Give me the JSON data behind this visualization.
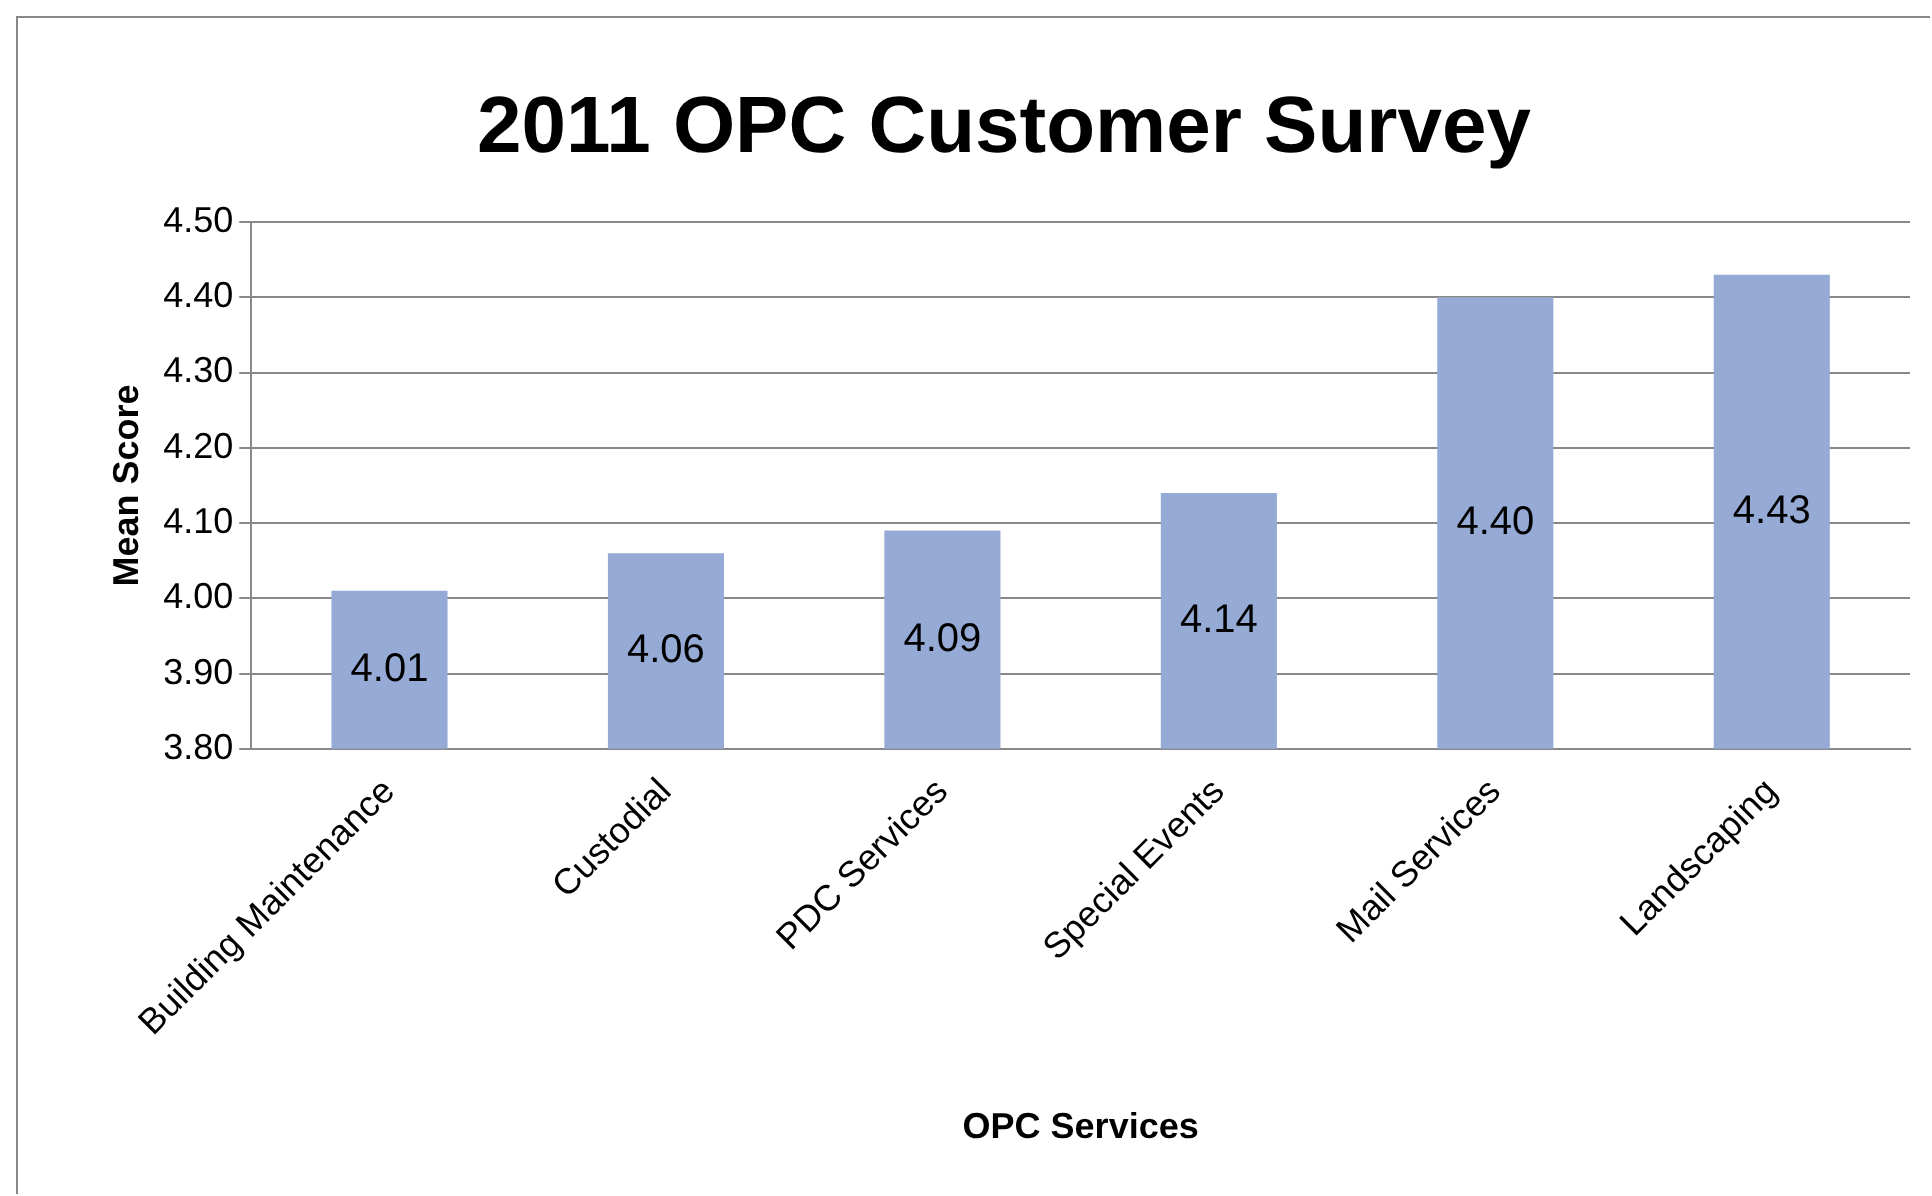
{
  "chart_data": {
    "type": "bar",
    "title": "2011 OPC Customer Survey",
    "xlabel": "OPC Services",
    "ylabel": "Mean Score",
    "categories": [
      "Building Maintenance",
      "Custodial",
      "PDC Services",
      "Special Events",
      "Mail Services",
      "Landscaping"
    ],
    "values": [
      4.01,
      4.06,
      4.09,
      4.14,
      4.4,
      4.43
    ],
    "value_labels": [
      "4.01",
      "4.06",
      "4.09",
      "4.14",
      "4.40",
      "4.43"
    ],
    "color": "#95abd6",
    "ylim": [
      3.8,
      4.5
    ],
    "yticks": [
      {
        "value": 3.8,
        "label": "3.80"
      },
      {
        "value": 3.9,
        "label": "3.90"
      },
      {
        "value": 4.0,
        "label": "4.00"
      },
      {
        "value": 4.1,
        "label": "4.10"
      },
      {
        "value": 4.2,
        "label": "4.20"
      },
      {
        "value": 4.3,
        "label": "4.30"
      },
      {
        "value": 4.4,
        "label": "4.40"
      },
      {
        "value": 4.5,
        "label": "4.50"
      }
    ],
    "grid": "y",
    "legend": false
  }
}
